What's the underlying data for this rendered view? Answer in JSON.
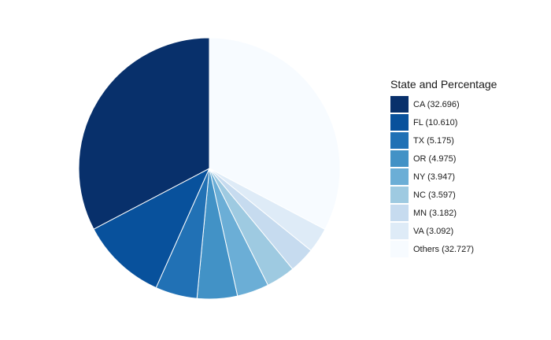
{
  "chart_data": {
    "type": "pie",
    "title": "",
    "legend": {
      "title": "State and Percentage",
      "position": "right"
    },
    "slices": [
      {
        "label": "CA (32.696)",
        "value": 32.696,
        "color": "#08306b"
      },
      {
        "label": "FL (10.610)",
        "value": 10.61,
        "color": "#08519c"
      },
      {
        "label": "TX (5.175)",
        "value": 5.175,
        "color": "#2171b5"
      },
      {
        "label": "OR (4.975)",
        "value": 4.975,
        "color": "#4292c6"
      },
      {
        "label": "NY (3.947)",
        "value": 3.947,
        "color": "#6baed6"
      },
      {
        "label": "NC (3.597)",
        "value": 3.597,
        "color": "#9ecae1"
      },
      {
        "label": "MN (3.182)",
        "value": 3.182,
        "color": "#c6dbef"
      },
      {
        "label": "VA (3.092)",
        "value": 3.092,
        "color": "#deebf7"
      },
      {
        "label": "Others (32.727)",
        "value": 32.727,
        "color": "#f7fbff"
      }
    ]
  }
}
